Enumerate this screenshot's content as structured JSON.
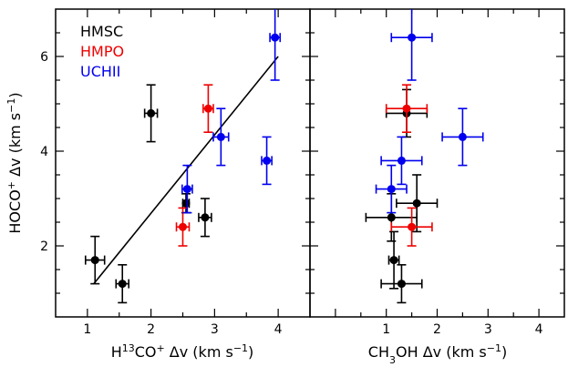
{
  "chart_data": [
    {
      "type": "scatter",
      "panel": "left",
      "xlabel": {
        "pre": "H",
        "sup1": "13",
        "mid": "CO",
        "sup2": "+",
        "post": " Δv  (km s",
        "sup3": "−1",
        "end": ")"
      },
      "ylabel": {
        "pre": "HOCO",
        "sup1": "+",
        "mid": " Δv  (km s",
        "sup2": "−1",
        "end": ")"
      },
      "xlim": [
        0.5,
        4.5
      ],
      "ylim": [
        0.5,
        7.0
      ],
      "xticks": [
        "1",
        "2",
        "3",
        "4"
      ],
      "yticks": [
        "2",
        "4",
        "6"
      ],
      "legend_placement": "top-left",
      "fit_line": {
        "x": [
          1.1,
          4.0
        ],
        "y": [
          1.2,
          6.0
        ],
        "color": "#000000"
      },
      "series": [
        {
          "name": "HMSC",
          "color": "#000000",
          "points": [
            {
              "x": 2.0,
              "y": 4.8,
              "xerr": 0.1,
              "yerr": 0.6
            },
            {
              "x": 2.55,
              "y": 2.9,
              "xerr": 0.05,
              "yerr": 0.2
            },
            {
              "x": 2.85,
              "y": 2.6,
              "xerr": 0.1,
              "yerr": 0.4
            },
            {
              "x": 1.12,
              "y": 1.7,
              "xerr": 0.15,
              "yerr": 0.5
            },
            {
              "x": 1.55,
              "y": 1.2,
              "xerr": 0.1,
              "yerr": 0.4
            }
          ]
        },
        {
          "name": "HMPO",
          "color": "#ee0000",
          "points": [
            {
              "x": 2.9,
              "y": 4.9,
              "xerr": 0.08,
              "yerr": 0.5
            },
            {
              "x": 2.5,
              "y": 2.4,
              "xerr": 0.1,
              "yerr": 0.4
            }
          ]
        },
        {
          "name": "UCHII",
          "color": "#0000ee",
          "points": [
            {
              "x": 3.95,
              "y": 6.4,
              "xerr": 0.08,
              "yerr": 0.9
            },
            {
              "x": 3.1,
              "y": 4.3,
              "xerr": 0.12,
              "yerr": 0.6
            },
            {
              "x": 3.82,
              "y": 3.8,
              "xerr": 0.08,
              "yerr": 0.5
            },
            {
              "x": 2.57,
              "y": 3.2,
              "xerr": 0.08,
              "yerr": 0.5
            }
          ]
        }
      ]
    },
    {
      "type": "scatter",
      "panel": "right",
      "xlabel": {
        "pre": "CH",
        "sub1": "3",
        "mid": "OH  Δv  (km s",
        "sup1": "−1",
        "end": ")"
      },
      "xlim": [
        -0.5,
        4.5
      ],
      "ylim": [
        0.5,
        7.0
      ],
      "xticks": [
        "1",
        "2",
        "3",
        "4"
      ],
      "series": [
        {
          "name": "HMSC",
          "color": "#000000",
          "points": [
            {
              "x": 1.4,
              "y": 4.8,
              "xerr": 0.4,
              "yerr": 0.5
            },
            {
              "x": 1.6,
              "y": 2.9,
              "xerr": 0.4,
              "yerr": 0.6
            },
            {
              "x": 1.1,
              "y": 2.6,
              "xerr": 0.5,
              "yerr": 0.5
            },
            {
              "x": 1.15,
              "y": 1.7,
              "xerr": 0.1,
              "yerr": 0.6
            },
            {
              "x": 1.3,
              "y": 1.2,
              "xerr": 0.4,
              "yerr": 0.4
            }
          ]
        },
        {
          "name": "HMPO",
          "color": "#ee0000",
          "points": [
            {
              "x": 1.4,
              "y": 4.9,
              "xerr": 0.4,
              "yerr": 0.5
            },
            {
              "x": 1.5,
              "y": 2.4,
              "xerr": 0.4,
              "yerr": 0.4
            }
          ]
        },
        {
          "name": "UCHII",
          "color": "#0000ee",
          "points": [
            {
              "x": 1.5,
              "y": 6.4,
              "xerr": 0.4,
              "yerr": 0.9
            },
            {
              "x": 2.5,
              "y": 4.3,
              "xerr": 0.4,
              "yerr": 0.6
            },
            {
              "x": 1.3,
              "y": 3.8,
              "xerr": 0.4,
              "yerr": 0.5
            },
            {
              "x": 1.1,
              "y": 3.2,
              "xerr": 0.3,
              "yerr": 0.5
            }
          ]
        }
      ]
    }
  ]
}
